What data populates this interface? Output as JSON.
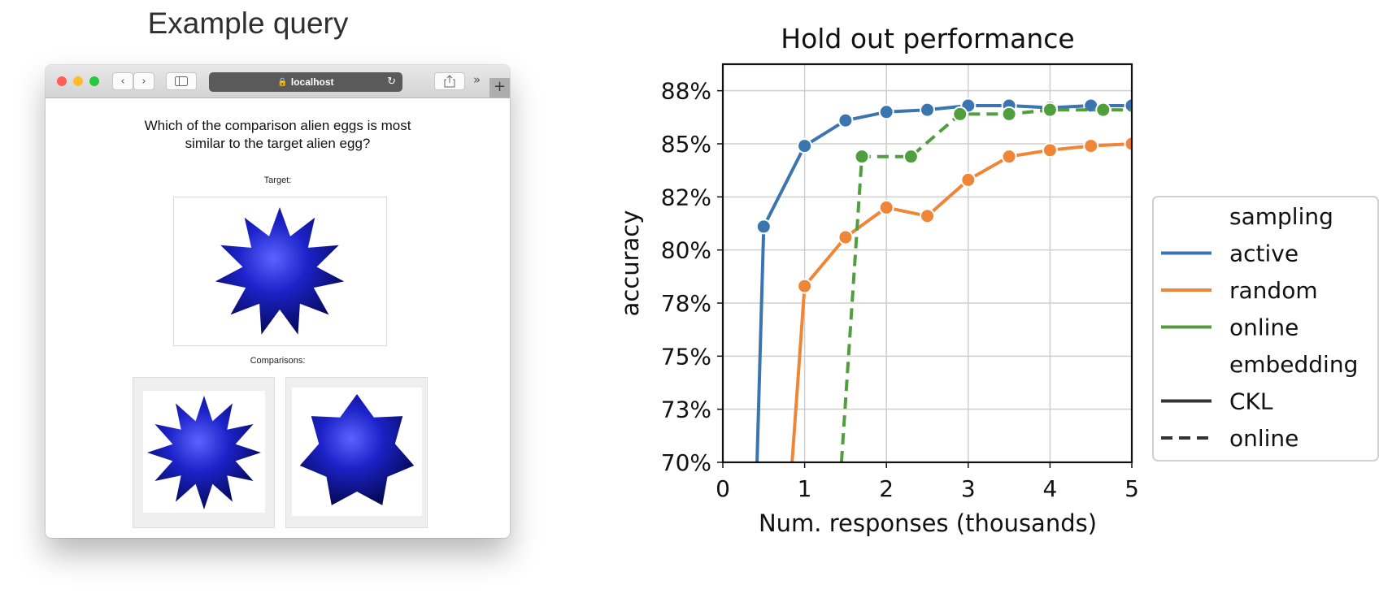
{
  "left_title": "Example query",
  "browser": {
    "url": "localhost",
    "overflow_glyph": "»",
    "new_tab_glyph": "+",
    "icons": [
      "close-dot",
      "minimize-dot",
      "zoom-dot",
      "back-icon",
      "forward-icon",
      "sidebar-icon",
      "lock-icon",
      "reload-icon",
      "share-icon"
    ],
    "colors": {
      "close": "#fe5f57",
      "minimize": "#febc2e",
      "zoom": "#28c840"
    }
  },
  "page": {
    "question_line1": "Which of the comparison alien eggs is most",
    "question_line2": "similar to the target alien egg?",
    "target_label": "Target:",
    "comparisons_label": "Comparisons:",
    "egg_color": "#1c22c8"
  },
  "chart_data": {
    "type": "line",
    "title": "Hold out performance",
    "xlabel": "Num. responses (thousands)",
    "ylabel": "accuracy",
    "xlim": [
      0,
      5
    ],
    "ylim": [
      0.7,
      0.8875
    ],
    "xticks": [
      0,
      1,
      2,
      3,
      4,
      5
    ],
    "xtick_labels": [
      "0",
      "1",
      "2",
      "3",
      "4",
      "5"
    ],
    "yticks": [
      0.7,
      0.725,
      0.75,
      0.775,
      0.8,
      0.825,
      0.85,
      0.875
    ],
    "ytick_labels": [
      "70%",
      "73%",
      "75%",
      "78%",
      "80%",
      "82%",
      "85%",
      "88%"
    ],
    "grid": true,
    "legend_placement": "right",
    "legend": [
      {
        "kind": "title",
        "label": "sampling"
      },
      {
        "kind": "line",
        "label": "active",
        "color": "#3a75b0",
        "dash": "solid"
      },
      {
        "kind": "line",
        "label": "random",
        "color": "#ef8637",
        "dash": "solid"
      },
      {
        "kind": "line",
        "label": "online",
        "color": "#519e3e",
        "dash": "solid"
      },
      {
        "kind": "title",
        "label": "embedding"
      },
      {
        "kind": "line",
        "label": "CKL",
        "color": "#333333",
        "dash": "solid"
      },
      {
        "kind": "line",
        "label": "online",
        "color": "#333333",
        "dash": "dashed"
      }
    ],
    "series": [
      {
        "sampling": "active",
        "embedding": "CKL",
        "color": "#3a75b0",
        "dash": "solid",
        "x": [
          0.4,
          0.5,
          1.0,
          1.5,
          2.0,
          2.5,
          3.0,
          3.5,
          4.0,
          4.5,
          5.0
        ],
        "y": [
          0.675,
          0.811,
          0.849,
          0.861,
          0.865,
          0.866,
          0.868,
          0.868,
          0.867,
          0.868,
          0.868
        ],
        "markers": [
          false,
          true,
          true,
          true,
          true,
          true,
          true,
          true,
          true,
          true,
          true
        ]
      },
      {
        "sampling": "random",
        "embedding": "CKL",
        "color": "#ef8637",
        "dash": "solid",
        "x": [
          0.8,
          1.0,
          1.5,
          2.0,
          2.5,
          3.0,
          3.5,
          4.0,
          4.5,
          5.0
        ],
        "y": [
          0.675,
          0.783,
          0.806,
          0.82,
          0.816,
          0.833,
          0.844,
          0.847,
          0.849,
          0.85
        ],
        "markers": [
          false,
          true,
          true,
          true,
          true,
          true,
          true,
          true,
          true,
          true
        ]
      },
      {
        "sampling": "online",
        "embedding": "online",
        "color": "#519e3e",
        "dash": "dashed",
        "x": [
          1.45,
          1.7,
          2.3,
          2.9,
          3.5,
          4.0,
          4.65,
          5.0
        ],
        "y": [
          0.7,
          0.844,
          0.844,
          0.864,
          0.864,
          0.866,
          0.866,
          0.866
        ],
        "markers": [
          false,
          true,
          true,
          true,
          true,
          true,
          true,
          false
        ]
      }
    ]
  }
}
